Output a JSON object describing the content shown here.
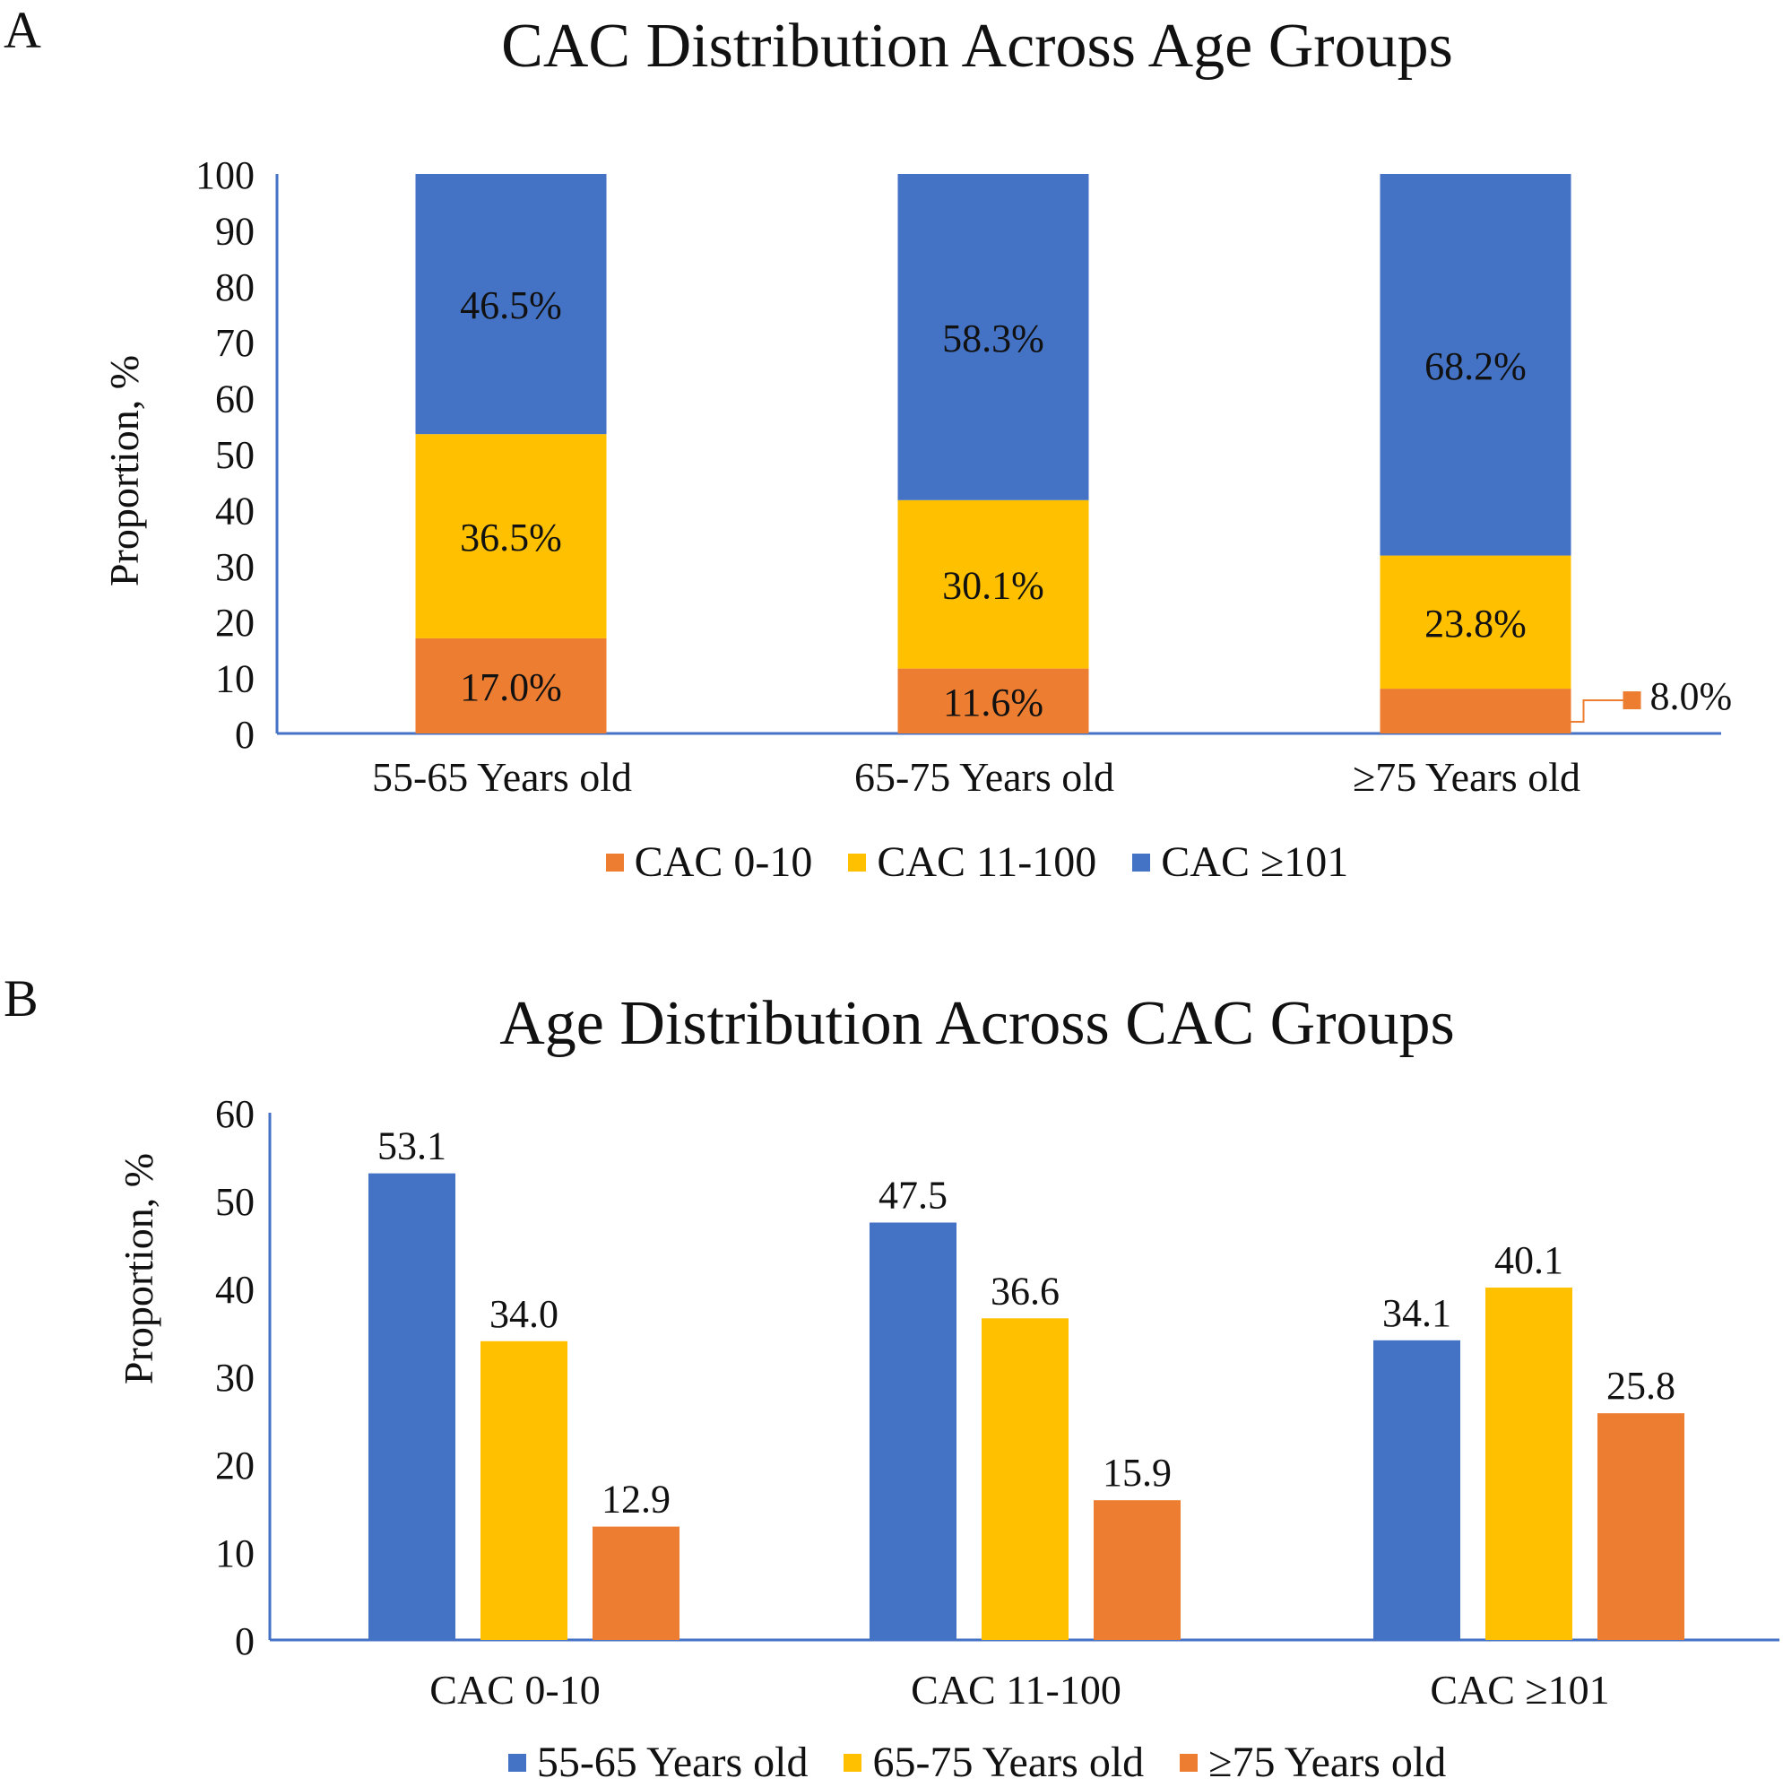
{
  "colors": {
    "orange": "#ED7D31",
    "yellow": "#FFC000",
    "blue": "#4472C4",
    "axis": "#4472C4"
  },
  "panel_a": {
    "letter": "A"
  },
  "panel_b": {
    "letter": "B"
  },
  "chart_data": [
    {
      "type": "bar",
      "stacked": true,
      "title": "CAC Distribution Across Age Groups",
      "xlabel": "",
      "ylabel": "Proportion, %",
      "ylim": [
        0,
        100
      ],
      "yticks": [
        0,
        10,
        20,
        30,
        40,
        50,
        60,
        70,
        80,
        90,
        100
      ],
      "categories": [
        "55-65 Years old",
        "65-75 Years old",
        "≥75 Years old"
      ],
      "series": [
        {
          "name": "CAC 0-10",
          "color": "#ED7D31",
          "values": [
            17.0,
            11.6,
            8.0
          ],
          "labels": [
            "17.0%",
            "11.6%",
            "8.0%"
          ]
        },
        {
          "name": "CAC 11-100",
          "color": "#FFC000",
          "values": [
            36.5,
            30.1,
            23.8
          ],
          "labels": [
            "36.5%",
            "30.1%",
            "23.8%"
          ]
        },
        {
          "name": "CAC ≥101",
          "color": "#4472C4",
          "values": [
            46.5,
            58.3,
            68.2
          ],
          "labels": [
            "46.5%",
            "58.3%",
            "68.2%"
          ]
        }
      ],
      "legend_position": "bottom"
    },
    {
      "type": "bar",
      "stacked": false,
      "title": "Age Distribution Across CAC Groups",
      "xlabel": "",
      "ylabel": "Proportion, %",
      "ylim": [
        0,
        60
      ],
      "yticks": [
        0,
        10,
        20,
        30,
        40,
        50,
        60
      ],
      "categories": [
        "CAC 0-10",
        "CAC 11-100",
        "CAC ≥101"
      ],
      "series": [
        {
          "name": "55-65 Years old",
          "color": "#4472C4",
          "values": [
            53.1,
            47.5,
            34.1
          ],
          "labels": [
            "53.1",
            "47.5",
            "34.1"
          ]
        },
        {
          "name": "65-75 Years old",
          "color": "#FFC000",
          "values": [
            34.0,
            36.6,
            40.1
          ],
          "labels": [
            "34.0",
            "36.6",
            "40.1"
          ]
        },
        {
          "name": "≥75 Years old",
          "color": "#ED7D31",
          "values": [
            12.9,
            15.9,
            25.8
          ],
          "labels": [
            "12.9",
            "15.9",
            "25.8"
          ]
        }
      ],
      "legend_position": "bottom"
    }
  ]
}
